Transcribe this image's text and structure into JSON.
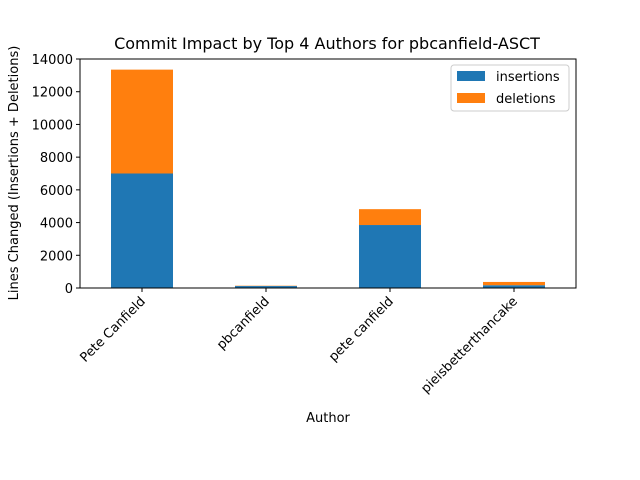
{
  "chart_data": {
    "type": "bar",
    "stacked": true,
    "title": "Commit Impact by Top 4 Authors for pbcanfield-ASCT",
    "xlabel": "Author",
    "ylabel": "Lines Changed (Insertions + Deletions)",
    "categories": [
      "Pete Canfield",
      "pbcanfield",
      "pete canfield",
      "pieisbetterthancake"
    ],
    "series": [
      {
        "name": "insertions",
        "values": [
          7000,
          120,
          3850,
          170
        ],
        "color": "#1f77b4"
      },
      {
        "name": "deletions",
        "values": [
          6350,
          20,
          970,
          200
        ],
        "color": "#ff7f0e"
      }
    ],
    "ylim": [
      0,
      14000
    ],
    "yticks": [
      "0",
      "2000",
      "4000",
      "6000",
      "8000",
      "10000",
      "12000",
      "14000"
    ],
    "grid": false,
    "legend_position": "top-right"
  }
}
